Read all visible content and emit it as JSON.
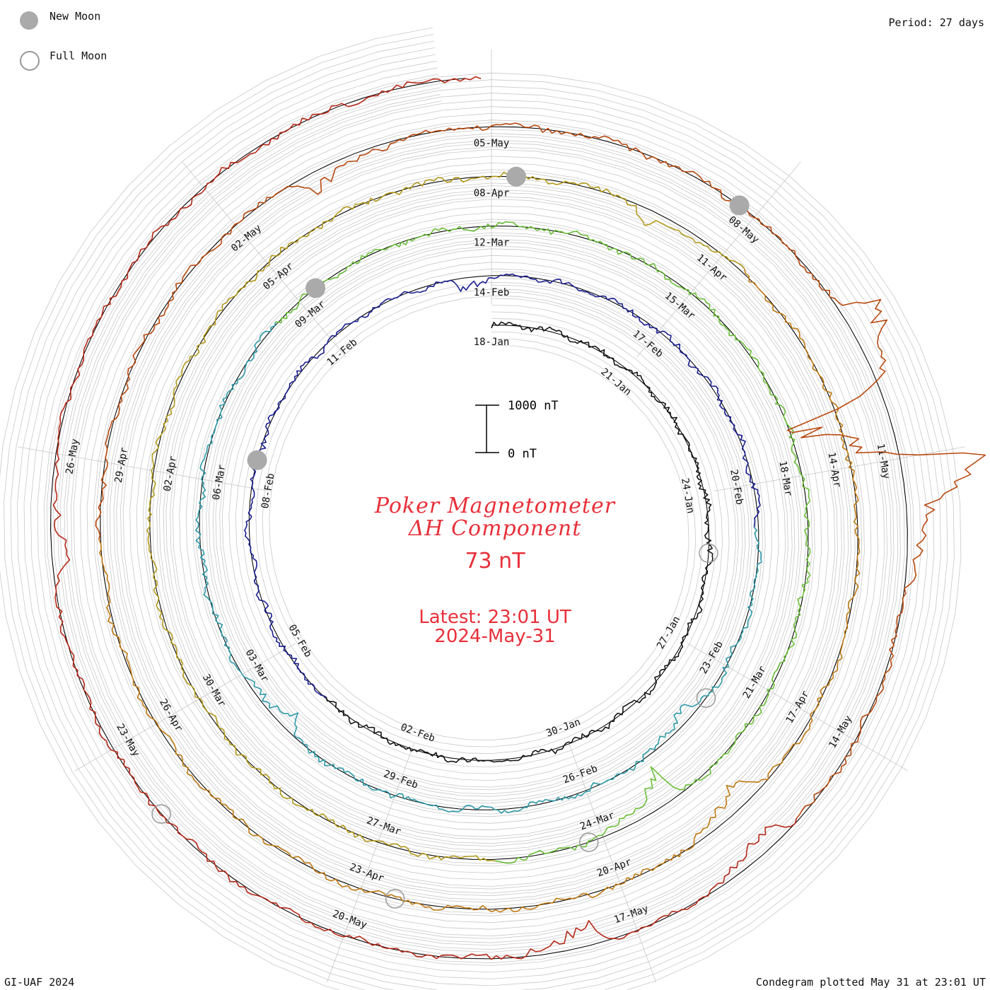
{
  "header": {
    "legend": [
      {
        "label": "New Moon",
        "style": "filled",
        "color": "#aaaaaa"
      },
      {
        "label": "Full Moon",
        "style": "hollow",
        "color": "#999999"
      }
    ],
    "period": "Period: 27 days"
  },
  "footer": {
    "credit": "GI-UAF 2024",
    "plotted": "Condegram plotted May 31 at 23:01 UT"
  },
  "center": {
    "title_line1": "Poker Magnetometer",
    "title_line2": "ΔH Component",
    "value": "73 nT",
    "latest": "Latest: 23:01 UT",
    "date": "2024-May-31",
    "color": "#e8303a"
  },
  "chart_data": {
    "type": "line",
    "layout": "spiral condegram",
    "scale_bar": {
      "top_label": "1000 nT",
      "bottom_label": "0 nT",
      "top_value": 1000,
      "bottom_value": 0
    },
    "ring_colors": [
      "#151515",
      "#1a1f8f",
      "#2f9aa8",
      "#6cbf3a",
      "#b39a1c",
      "#c07a14",
      "#b84a10",
      "#b52a1a"
    ],
    "day_labels": [
      {
        "label": "18-Jan",
        "day": 0
      },
      {
        "label": "21-Jan",
        "day": 3
      },
      {
        "label": "24-Jan",
        "day": 6
      },
      {
        "label": "27-Jan",
        "day": 9
      },
      {
        "label": "30-Jan",
        "day": 12
      },
      {
        "label": "02-Feb",
        "day": 15
      },
      {
        "label": "05-Feb",
        "day": 18
      },
      {
        "label": "08-Feb",
        "day": 21
      },
      {
        "label": "11-Feb",
        "day": 24
      },
      {
        "label": "14-Feb",
        "day": 27
      },
      {
        "label": "17-Feb",
        "day": 30
      },
      {
        "label": "20-Feb",
        "day": 33
      },
      {
        "label": "23-Feb",
        "day": 36
      },
      {
        "label": "26-Feb",
        "day": 39
      },
      {
        "label": "29-Feb",
        "day": 42
      },
      {
        "label": "03-Mar",
        "day": 45
      },
      {
        "label": "06-Mar",
        "day": 48
      },
      {
        "label": "09-Mar",
        "day": 51
      },
      {
        "label": "12-Mar",
        "day": 54
      },
      {
        "label": "15-Mar",
        "day": 57
      },
      {
        "label": "18-Mar",
        "day": 60
      },
      {
        "label": "21-Mar",
        "day": 63
      },
      {
        "label": "24-Mar",
        "day": 66
      },
      {
        "label": "27-Mar",
        "day": 69
      },
      {
        "label": "30-Mar",
        "day": 72
      },
      {
        "label": "02-Apr",
        "day": 75
      },
      {
        "label": "05-Apr",
        "day": 78
      },
      {
        "label": "08-Apr",
        "day": 81
      },
      {
        "label": "11-Apr",
        "day": 84
      },
      {
        "label": "14-Apr",
        "day": 87
      },
      {
        "label": "17-Apr",
        "day": 90
      },
      {
        "label": "20-Apr",
        "day": 93
      },
      {
        "label": "23-Apr",
        "day": 96
      },
      {
        "label": "26-Apr",
        "day": 99
      },
      {
        "label": "29-Apr",
        "day": 102
      },
      {
        "label": "02-May",
        "day": 105
      },
      {
        "label": "05-May",
        "day": 108
      },
      {
        "label": "08-May",
        "day": 111
      },
      {
        "label": "11-May",
        "day": 114
      },
      {
        "label": "14-May",
        "day": 117
      },
      {
        "label": "17-May",
        "day": 120
      },
      {
        "label": "20-May",
        "day": 123
      },
      {
        "label": "23-May",
        "day": 126
      },
      {
        "label": "26-May",
        "day": 129
      }
    ],
    "new_moons": [
      21.5,
      51.3,
      81.3,
      110.8
    ],
    "full_moons": [
      7.2,
      36.6,
      66.2,
      95.6,
      125.2
    ],
    "disturbances": [
      {
        "day": 26.5,
        "nT": -260
      },
      {
        "day": 37.0,
        "nT": -320
      },
      {
        "day": 44.0,
        "nT": -380
      },
      {
        "day": 65.0,
        "nT": -700
      },
      {
        "day": 83.0,
        "nT": -300
      },
      {
        "day": 91.2,
        "nT": -650
      },
      {
        "day": 106.0,
        "nT": -380
      },
      {
        "day": 112.5,
        "nT": 900
      },
      {
        "day": 113.4,
        "nT": -2200
      },
      {
        "day": 114.1,
        "nT": 1900
      },
      {
        "day": 118.3,
        "nT": -550
      },
      {
        "day": 120.5,
        "nT": -450
      },
      {
        "day": 128.0,
        "nT": -400
      }
    ]
  }
}
